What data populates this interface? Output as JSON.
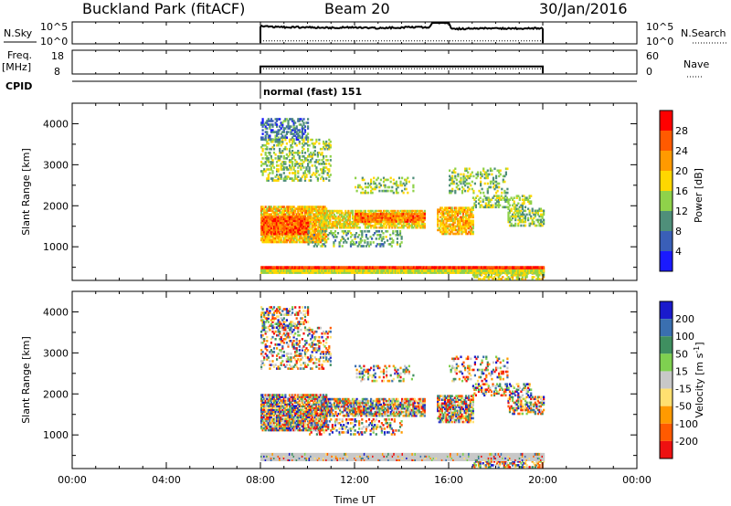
{
  "header": {
    "station": "Buckland Park (fitACF)",
    "beam": "Beam 20",
    "date": "30/Jan/2016"
  },
  "colors": {
    "power": [
      "#1a1aff",
      "#3a5fb8",
      "#4f8f7a",
      "#8fd24a",
      "#ffd700",
      "#ff9a00",
      "#ff5a00",
      "#ff0000"
    ],
    "velocity": [
      "#1a1acc",
      "#3a6fb0",
      "#3f8f60",
      "#7fd050",
      "#c8c8c8",
      "#ffe070",
      "#ff9a00",
      "#ff5a00",
      "#ee1111"
    ]
  },
  "chart_data": [
    {
      "type": "line",
      "name_panel": "nsky",
      "left_label": "N.Sky",
      "right_label": "N.Search",
      "left_ticks": [
        "10^5",
        "10^0"
      ],
      "right_ticks": [
        "10^5",
        "10^0"
      ],
      "x_range": [
        0,
        24
      ],
      "active_range": [
        8,
        20
      ],
      "series_sky": [
        [
          8.0,
          0.82
        ],
        [
          9.0,
          0.78
        ],
        [
          10.0,
          0.78
        ],
        [
          11.0,
          0.75
        ],
        [
          12.0,
          0.78
        ],
        [
          13.0,
          0.74
        ],
        [
          14.0,
          0.77
        ],
        [
          15.2,
          0.78
        ],
        [
          15.3,
          1.0
        ],
        [
          16.0,
          1.0
        ],
        [
          16.1,
          0.7
        ],
        [
          17.0,
          0.72
        ],
        [
          18.0,
          0.72
        ],
        [
          19.0,
          0.72
        ],
        [
          20.0,
          0.72
        ]
      ],
      "series_search": 0.1
    },
    {
      "type": "line",
      "name_panel": "freq",
      "left_label": "Freq.",
      "left_unit": "[MHz]",
      "right_label": "Nave",
      "left_ticks": [
        "18",
        "8"
      ],
      "right_ticks": [
        "60",
        "0"
      ],
      "active_range": [
        8,
        20
      ],
      "freq_level": 0.1,
      "nave_level": 0.1
    },
    {
      "type": "table",
      "name_panel": "cpid",
      "label": "CPID",
      "program": "normal (fast) 151",
      "start": 8
    },
    {
      "type": "heatmap",
      "name_panel": "power",
      "title": "",
      "xlabel": "",
      "ylabel": "Slant Range [km]",
      "x_range": [
        0,
        24
      ],
      "y_range": [
        180,
        4500
      ],
      "y_ticks": [
        1000,
        2000,
        3000,
        4000
      ],
      "colorbar_label": "Power [dB]",
      "colorbar_ticks": [
        "4",
        "8",
        "12",
        "16",
        "20",
        "24",
        "28"
      ],
      "colorbar_range": [
        0,
        32
      ],
      "regions": [
        {
          "x": [
            8.0,
            10.0
          ],
          "y": [
            3600,
            4100
          ],
          "v": 8,
          "d": 0.45
        },
        {
          "x": [
            8.0,
            11.0
          ],
          "y": [
            2600,
            3600
          ],
          "v": 14,
          "d": 0.35
        },
        {
          "x": [
            8.0,
            10.8
          ],
          "y": [
            1100,
            2000
          ],
          "v": 20,
          "d": 0.85
        },
        {
          "x": [
            8.0,
            10.0
          ],
          "y": [
            1300,
            1750
          ],
          "v": 26,
          "d": 0.9
        },
        {
          "x": [
            10.5,
            15.0
          ],
          "y": [
            1450,
            1900
          ],
          "v": 18,
          "d": 0.75
        },
        {
          "x": [
            12.0,
            15.0
          ],
          "y": [
            1600,
            1800
          ],
          "v": 24,
          "d": 0.85
        },
        {
          "x": [
            15.5,
            17.0
          ],
          "y": [
            1300,
            1950
          ],
          "v": 20,
          "d": 0.75
        },
        {
          "x": [
            17.0,
            19.5
          ],
          "y": [
            1950,
            2250
          ],
          "v": 14,
          "d": 0.45
        },
        {
          "x": [
            18.5,
            20.0
          ],
          "y": [
            1500,
            1950
          ],
          "v": 14,
          "d": 0.5
        },
        {
          "x": [
            12.0,
            14.5
          ],
          "y": [
            2300,
            2700
          ],
          "v": 14,
          "d": 0.3
        },
        {
          "x": [
            10.0,
            14.0
          ],
          "y": [
            1000,
            1400
          ],
          "v": 12,
          "d": 0.3
        },
        {
          "x": [
            16.0,
            18.5
          ],
          "y": [
            2300,
            2900
          ],
          "v": 14,
          "d": 0.25
        },
        {
          "x": [
            17.0,
            20.0
          ],
          "y": [
            200,
            420
          ],
          "v": 16,
          "d": 0.55
        }
      ],
      "bands": [
        {
          "x": [
            8.0,
            20.0
          ],
          "y": [
            440,
            530
          ],
          "v": 28
        },
        {
          "x": [
            8.0,
            20.0
          ],
          "y": [
            360,
            420
          ],
          "v": 16
        }
      ]
    },
    {
      "type": "heatmap",
      "name_panel": "velocity",
      "title": "",
      "xlabel": "Time UT",
      "ylabel": "Slant Range [km]",
      "x_range": [
        0,
        24
      ],
      "x_ticks": [
        "00:00",
        "04:00",
        "08:00",
        "12:00",
        "16:00",
        "20:00",
        "00:00"
      ],
      "y_range": [
        180,
        4500
      ],
      "y_ticks": [
        1000,
        2000,
        3000,
        4000
      ],
      "colorbar_label": "Velocity [m s^-1]",
      "colorbar_ticks": [
        "200",
        "100",
        "50",
        "15",
        "-15",
        "-50",
        "-100",
        "-200"
      ],
      "regions": [
        {
          "x": [
            8.0,
            10.0
          ],
          "y": [
            3600,
            4100
          ],
          "d": 0.4
        },
        {
          "x": [
            8.0,
            11.0
          ],
          "y": [
            2600,
            3600
          ],
          "d": 0.3
        },
        {
          "x": [
            8.0,
            10.8
          ],
          "y": [
            1100,
            2000
          ],
          "d": 0.85
        },
        {
          "x": [
            10.5,
            15.0
          ],
          "y": [
            1450,
            1900
          ],
          "d": 0.75
        },
        {
          "x": [
            15.5,
            17.0
          ],
          "y": [
            1300,
            1950
          ],
          "d": 0.75
        },
        {
          "x": [
            17.0,
            19.5
          ],
          "y": [
            1950,
            2250
          ],
          "d": 0.45
        },
        {
          "x": [
            18.5,
            20.0
          ],
          "y": [
            1500,
            1950
          ],
          "d": 0.5
        },
        {
          "x": [
            12.0,
            14.5
          ],
          "y": [
            2300,
            2700
          ],
          "d": 0.3
        },
        {
          "x": [
            10.0,
            14.0
          ],
          "y": [
            1000,
            1400
          ],
          "d": 0.3
        },
        {
          "x": [
            16.0,
            18.5
          ],
          "y": [
            2300,
            2900
          ],
          "d": 0.2
        },
        {
          "x": [
            17.0,
            20.0
          ],
          "y": [
            200,
            420
          ],
          "d": 0.55
        }
      ],
      "bands": [
        {
          "x": [
            8.0,
            20.0
          ],
          "y": [
            380,
            530
          ],
          "v": 0
        }
      ]
    }
  ]
}
